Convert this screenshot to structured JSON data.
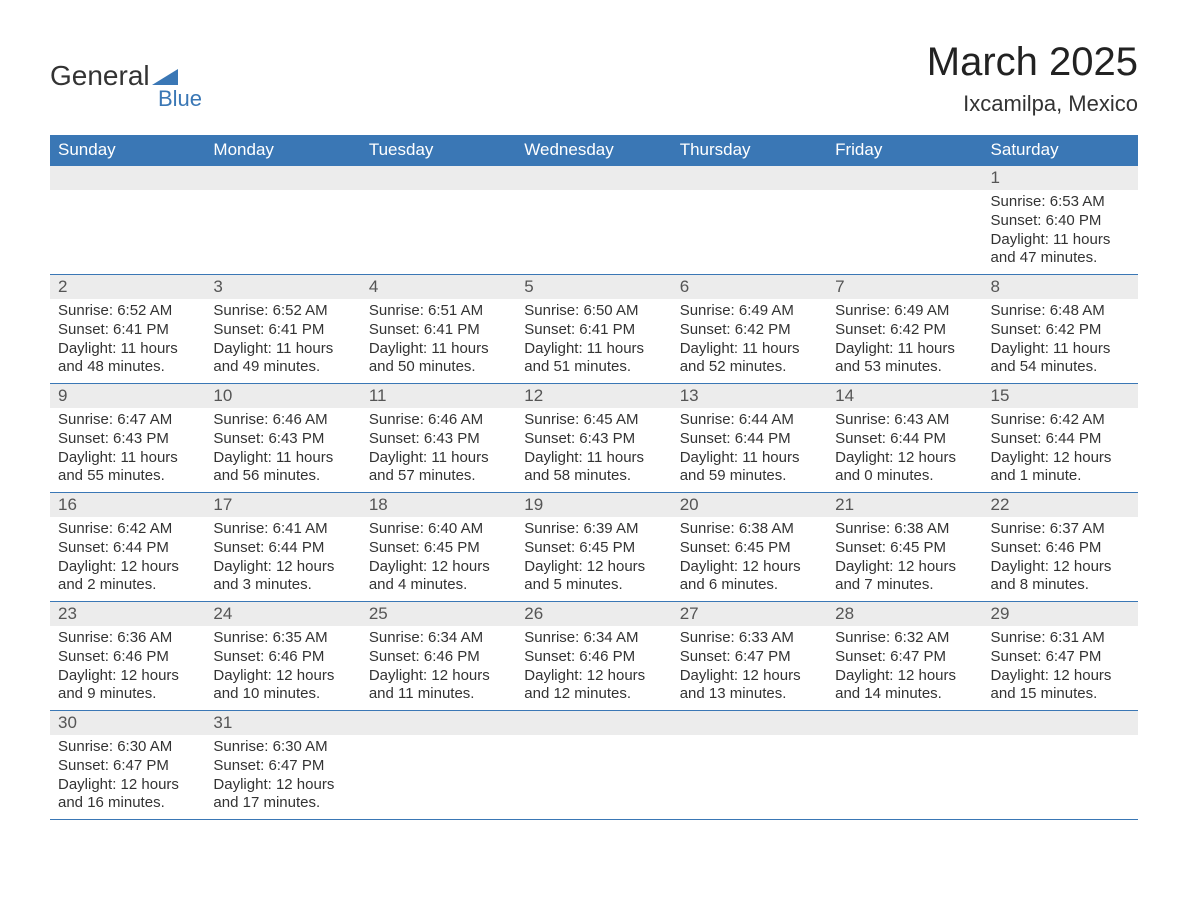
{
  "logo": {
    "text1": "General",
    "text2": "Blue",
    "triangle_color": "#3a77b5"
  },
  "title": "March 2025",
  "location": "Ixcamilpa, Mexico",
  "colors": {
    "header_bg": "#3a77b5",
    "header_text": "#ffffff",
    "daynum_bg": "#ececec",
    "row_border": "#3a77b5",
    "body_text": "#333333"
  },
  "day_headers": [
    "Sunday",
    "Monday",
    "Tuesday",
    "Wednesday",
    "Thursday",
    "Friday",
    "Saturday"
  ],
  "weeks": [
    [
      null,
      null,
      null,
      null,
      null,
      null,
      {
        "n": "1",
        "sunrise": "Sunrise: 6:53 AM",
        "sunset": "Sunset: 6:40 PM",
        "daylight": "Daylight: 11 hours and 47 minutes."
      }
    ],
    [
      {
        "n": "2",
        "sunrise": "Sunrise: 6:52 AM",
        "sunset": "Sunset: 6:41 PM",
        "daylight": "Daylight: 11 hours and 48 minutes."
      },
      {
        "n": "3",
        "sunrise": "Sunrise: 6:52 AM",
        "sunset": "Sunset: 6:41 PM",
        "daylight": "Daylight: 11 hours and 49 minutes."
      },
      {
        "n": "4",
        "sunrise": "Sunrise: 6:51 AM",
        "sunset": "Sunset: 6:41 PM",
        "daylight": "Daylight: 11 hours and 50 minutes."
      },
      {
        "n": "5",
        "sunrise": "Sunrise: 6:50 AM",
        "sunset": "Sunset: 6:41 PM",
        "daylight": "Daylight: 11 hours and 51 minutes."
      },
      {
        "n": "6",
        "sunrise": "Sunrise: 6:49 AM",
        "sunset": "Sunset: 6:42 PM",
        "daylight": "Daylight: 11 hours and 52 minutes."
      },
      {
        "n": "7",
        "sunrise": "Sunrise: 6:49 AM",
        "sunset": "Sunset: 6:42 PM",
        "daylight": "Daylight: 11 hours and 53 minutes."
      },
      {
        "n": "8",
        "sunrise": "Sunrise: 6:48 AM",
        "sunset": "Sunset: 6:42 PM",
        "daylight": "Daylight: 11 hours and 54 minutes."
      }
    ],
    [
      {
        "n": "9",
        "sunrise": "Sunrise: 6:47 AM",
        "sunset": "Sunset: 6:43 PM",
        "daylight": "Daylight: 11 hours and 55 minutes."
      },
      {
        "n": "10",
        "sunrise": "Sunrise: 6:46 AM",
        "sunset": "Sunset: 6:43 PM",
        "daylight": "Daylight: 11 hours and 56 minutes."
      },
      {
        "n": "11",
        "sunrise": "Sunrise: 6:46 AM",
        "sunset": "Sunset: 6:43 PM",
        "daylight": "Daylight: 11 hours and 57 minutes."
      },
      {
        "n": "12",
        "sunrise": "Sunrise: 6:45 AM",
        "sunset": "Sunset: 6:43 PM",
        "daylight": "Daylight: 11 hours and 58 minutes."
      },
      {
        "n": "13",
        "sunrise": "Sunrise: 6:44 AM",
        "sunset": "Sunset: 6:44 PM",
        "daylight": "Daylight: 11 hours and 59 minutes."
      },
      {
        "n": "14",
        "sunrise": "Sunrise: 6:43 AM",
        "sunset": "Sunset: 6:44 PM",
        "daylight": "Daylight: 12 hours and 0 minutes."
      },
      {
        "n": "15",
        "sunrise": "Sunrise: 6:42 AM",
        "sunset": "Sunset: 6:44 PM",
        "daylight": "Daylight: 12 hours and 1 minute."
      }
    ],
    [
      {
        "n": "16",
        "sunrise": "Sunrise: 6:42 AM",
        "sunset": "Sunset: 6:44 PM",
        "daylight": "Daylight: 12 hours and 2 minutes."
      },
      {
        "n": "17",
        "sunrise": "Sunrise: 6:41 AM",
        "sunset": "Sunset: 6:44 PM",
        "daylight": "Daylight: 12 hours and 3 minutes."
      },
      {
        "n": "18",
        "sunrise": "Sunrise: 6:40 AM",
        "sunset": "Sunset: 6:45 PM",
        "daylight": "Daylight: 12 hours and 4 minutes."
      },
      {
        "n": "19",
        "sunrise": "Sunrise: 6:39 AM",
        "sunset": "Sunset: 6:45 PM",
        "daylight": "Daylight: 12 hours and 5 minutes."
      },
      {
        "n": "20",
        "sunrise": "Sunrise: 6:38 AM",
        "sunset": "Sunset: 6:45 PM",
        "daylight": "Daylight: 12 hours and 6 minutes."
      },
      {
        "n": "21",
        "sunrise": "Sunrise: 6:38 AM",
        "sunset": "Sunset: 6:45 PM",
        "daylight": "Daylight: 12 hours and 7 minutes."
      },
      {
        "n": "22",
        "sunrise": "Sunrise: 6:37 AM",
        "sunset": "Sunset: 6:46 PM",
        "daylight": "Daylight: 12 hours and 8 minutes."
      }
    ],
    [
      {
        "n": "23",
        "sunrise": "Sunrise: 6:36 AM",
        "sunset": "Sunset: 6:46 PM",
        "daylight": "Daylight: 12 hours and 9 minutes."
      },
      {
        "n": "24",
        "sunrise": "Sunrise: 6:35 AM",
        "sunset": "Sunset: 6:46 PM",
        "daylight": "Daylight: 12 hours and 10 minutes."
      },
      {
        "n": "25",
        "sunrise": "Sunrise: 6:34 AM",
        "sunset": "Sunset: 6:46 PM",
        "daylight": "Daylight: 12 hours and 11 minutes."
      },
      {
        "n": "26",
        "sunrise": "Sunrise: 6:34 AM",
        "sunset": "Sunset: 6:46 PM",
        "daylight": "Daylight: 12 hours and 12 minutes."
      },
      {
        "n": "27",
        "sunrise": "Sunrise: 6:33 AM",
        "sunset": "Sunset: 6:47 PM",
        "daylight": "Daylight: 12 hours and 13 minutes."
      },
      {
        "n": "28",
        "sunrise": "Sunrise: 6:32 AM",
        "sunset": "Sunset: 6:47 PM",
        "daylight": "Daylight: 12 hours and 14 minutes."
      },
      {
        "n": "29",
        "sunrise": "Sunrise: 6:31 AM",
        "sunset": "Sunset: 6:47 PM",
        "daylight": "Daylight: 12 hours and 15 minutes."
      }
    ],
    [
      {
        "n": "30",
        "sunrise": "Sunrise: 6:30 AM",
        "sunset": "Sunset: 6:47 PM",
        "daylight": "Daylight: 12 hours and 16 minutes."
      },
      {
        "n": "31",
        "sunrise": "Sunrise: 6:30 AM",
        "sunset": "Sunset: 6:47 PM",
        "daylight": "Daylight: 12 hours and 17 minutes."
      },
      null,
      null,
      null,
      null,
      null
    ]
  ]
}
